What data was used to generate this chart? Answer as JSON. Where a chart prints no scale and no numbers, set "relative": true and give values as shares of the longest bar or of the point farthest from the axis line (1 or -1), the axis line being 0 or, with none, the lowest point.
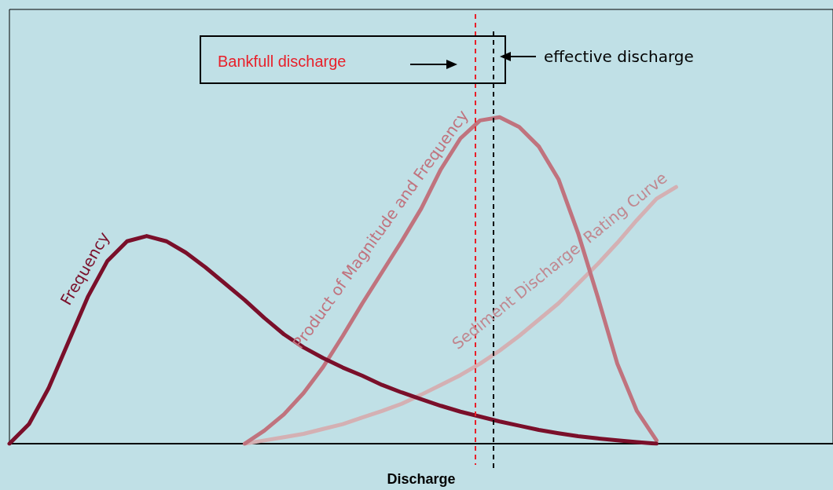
{
  "chart_data": {
    "type": "line",
    "relative": true,
    "xlabel": "Discharge",
    "tick_labels": false,
    "grid": false,
    "legend": false,
    "marker": "none",
    "line_style": "solid",
    "categories": [
      null,
      null,
      null,
      null,
      null,
      null,
      null,
      null,
      null,
      null,
      null,
      null,
      null,
      null,
      null,
      null,
      null,
      null,
      null,
      null,
      null,
      null,
      null,
      null,
      null,
      null,
      null,
      null,
      null,
      null,
      null,
      null,
      null,
      null,
      null,
      null,
      null,
      null,
      null,
      null,
      null,
      null,
      null
    ],
    "series": [
      {
        "name": "Frequency",
        "color": "#7a0f2a",
        "values": [
          0,
          0.06,
          0.17,
          0.31,
          0.45,
          0.56,
          0.62,
          0.636,
          0.62,
          0.585,
          0.54,
          0.49,
          0.44,
          0.385,
          0.335,
          0.295,
          0.262,
          0.233,
          0.208,
          0.18,
          0.157,
          0.136,
          0.116,
          0.098,
          0.083,
          0.068,
          0.055,
          0.042,
          0.032,
          0.023,
          0.016,
          0.01,
          0.005,
          0,
          null,
          null,
          null,
          null,
          null,
          null,
          null,
          null,
          null
        ]
      },
      {
        "name": "Product of Magnitude and Frequency",
        "color": "#c0737e",
        "values": [
          null,
          null,
          null,
          null,
          null,
          null,
          null,
          null,
          null,
          null,
          null,
          null,
          0,
          0.04,
          0.09,
          0.155,
          0.235,
          0.33,
          0.43,
          0.525,
          0.62,
          0.72,
          0.84,
          0.935,
          0.99,
          1,
          0.97,
          0.91,
          0.81,
          0.645,
          0.45,
          0.245,
          0.1,
          0.01,
          null,
          null,
          null,
          null,
          null,
          null,
          null,
          null,
          null
        ]
      },
      {
        "name": "Sediment Discharge  Rating Curve",
        "color": "#d4b0b3",
        "values": [
          null,
          null,
          null,
          null,
          null,
          null,
          null,
          null,
          null,
          null,
          null,
          null,
          0,
          0.01,
          0.02,
          0.03,
          0.045,
          0.06,
          0.08,
          0.1,
          0.122,
          0.15,
          0.18,
          0.21,
          0.245,
          0.285,
          0.33,
          0.38,
          0.43,
          0.49,
          0.55,
          0.615,
          0.685,
          0.75,
          0.786,
          null,
          null,
          null,
          null,
          null,
          null,
          null,
          null
        ]
      }
    ],
    "ref_lines": [
      {
        "axis": "x",
        "label": "Bankfull discharge",
        "color": "#e8202a",
        "line_style": "dashed"
      },
      {
        "axis": "x",
        "label": "effective discharge",
        "color": "#000000",
        "line_style": "dashed"
      }
    ]
  }
}
